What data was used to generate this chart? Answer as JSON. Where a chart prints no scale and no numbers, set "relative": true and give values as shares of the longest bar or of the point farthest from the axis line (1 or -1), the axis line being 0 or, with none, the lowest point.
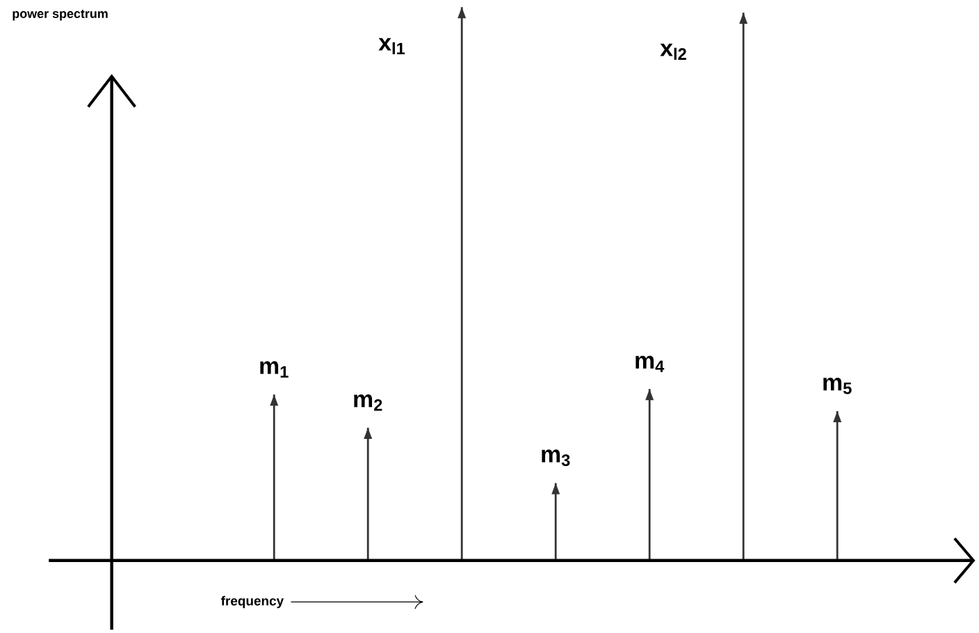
{
  "chart_data": {
    "type": "bar",
    "relative": true,
    "xlabel": "frequency",
    "categories": [
      "m$_{1}$",
      "m$_{2}$",
      null,
      "m$_{3}$",
      "m$_{4}$",
      null,
      "m$_{5}$"
    ],
    "values": [
      0.3,
      0.24,
      1.0,
      0.14,
      0.31,
      0.99,
      0.27
    ],
    "color": "#333333",
    "annotations": [
      "power spectrum",
      "x$_{l1}$",
      "x$_{l2}$"
    ]
  }
}
